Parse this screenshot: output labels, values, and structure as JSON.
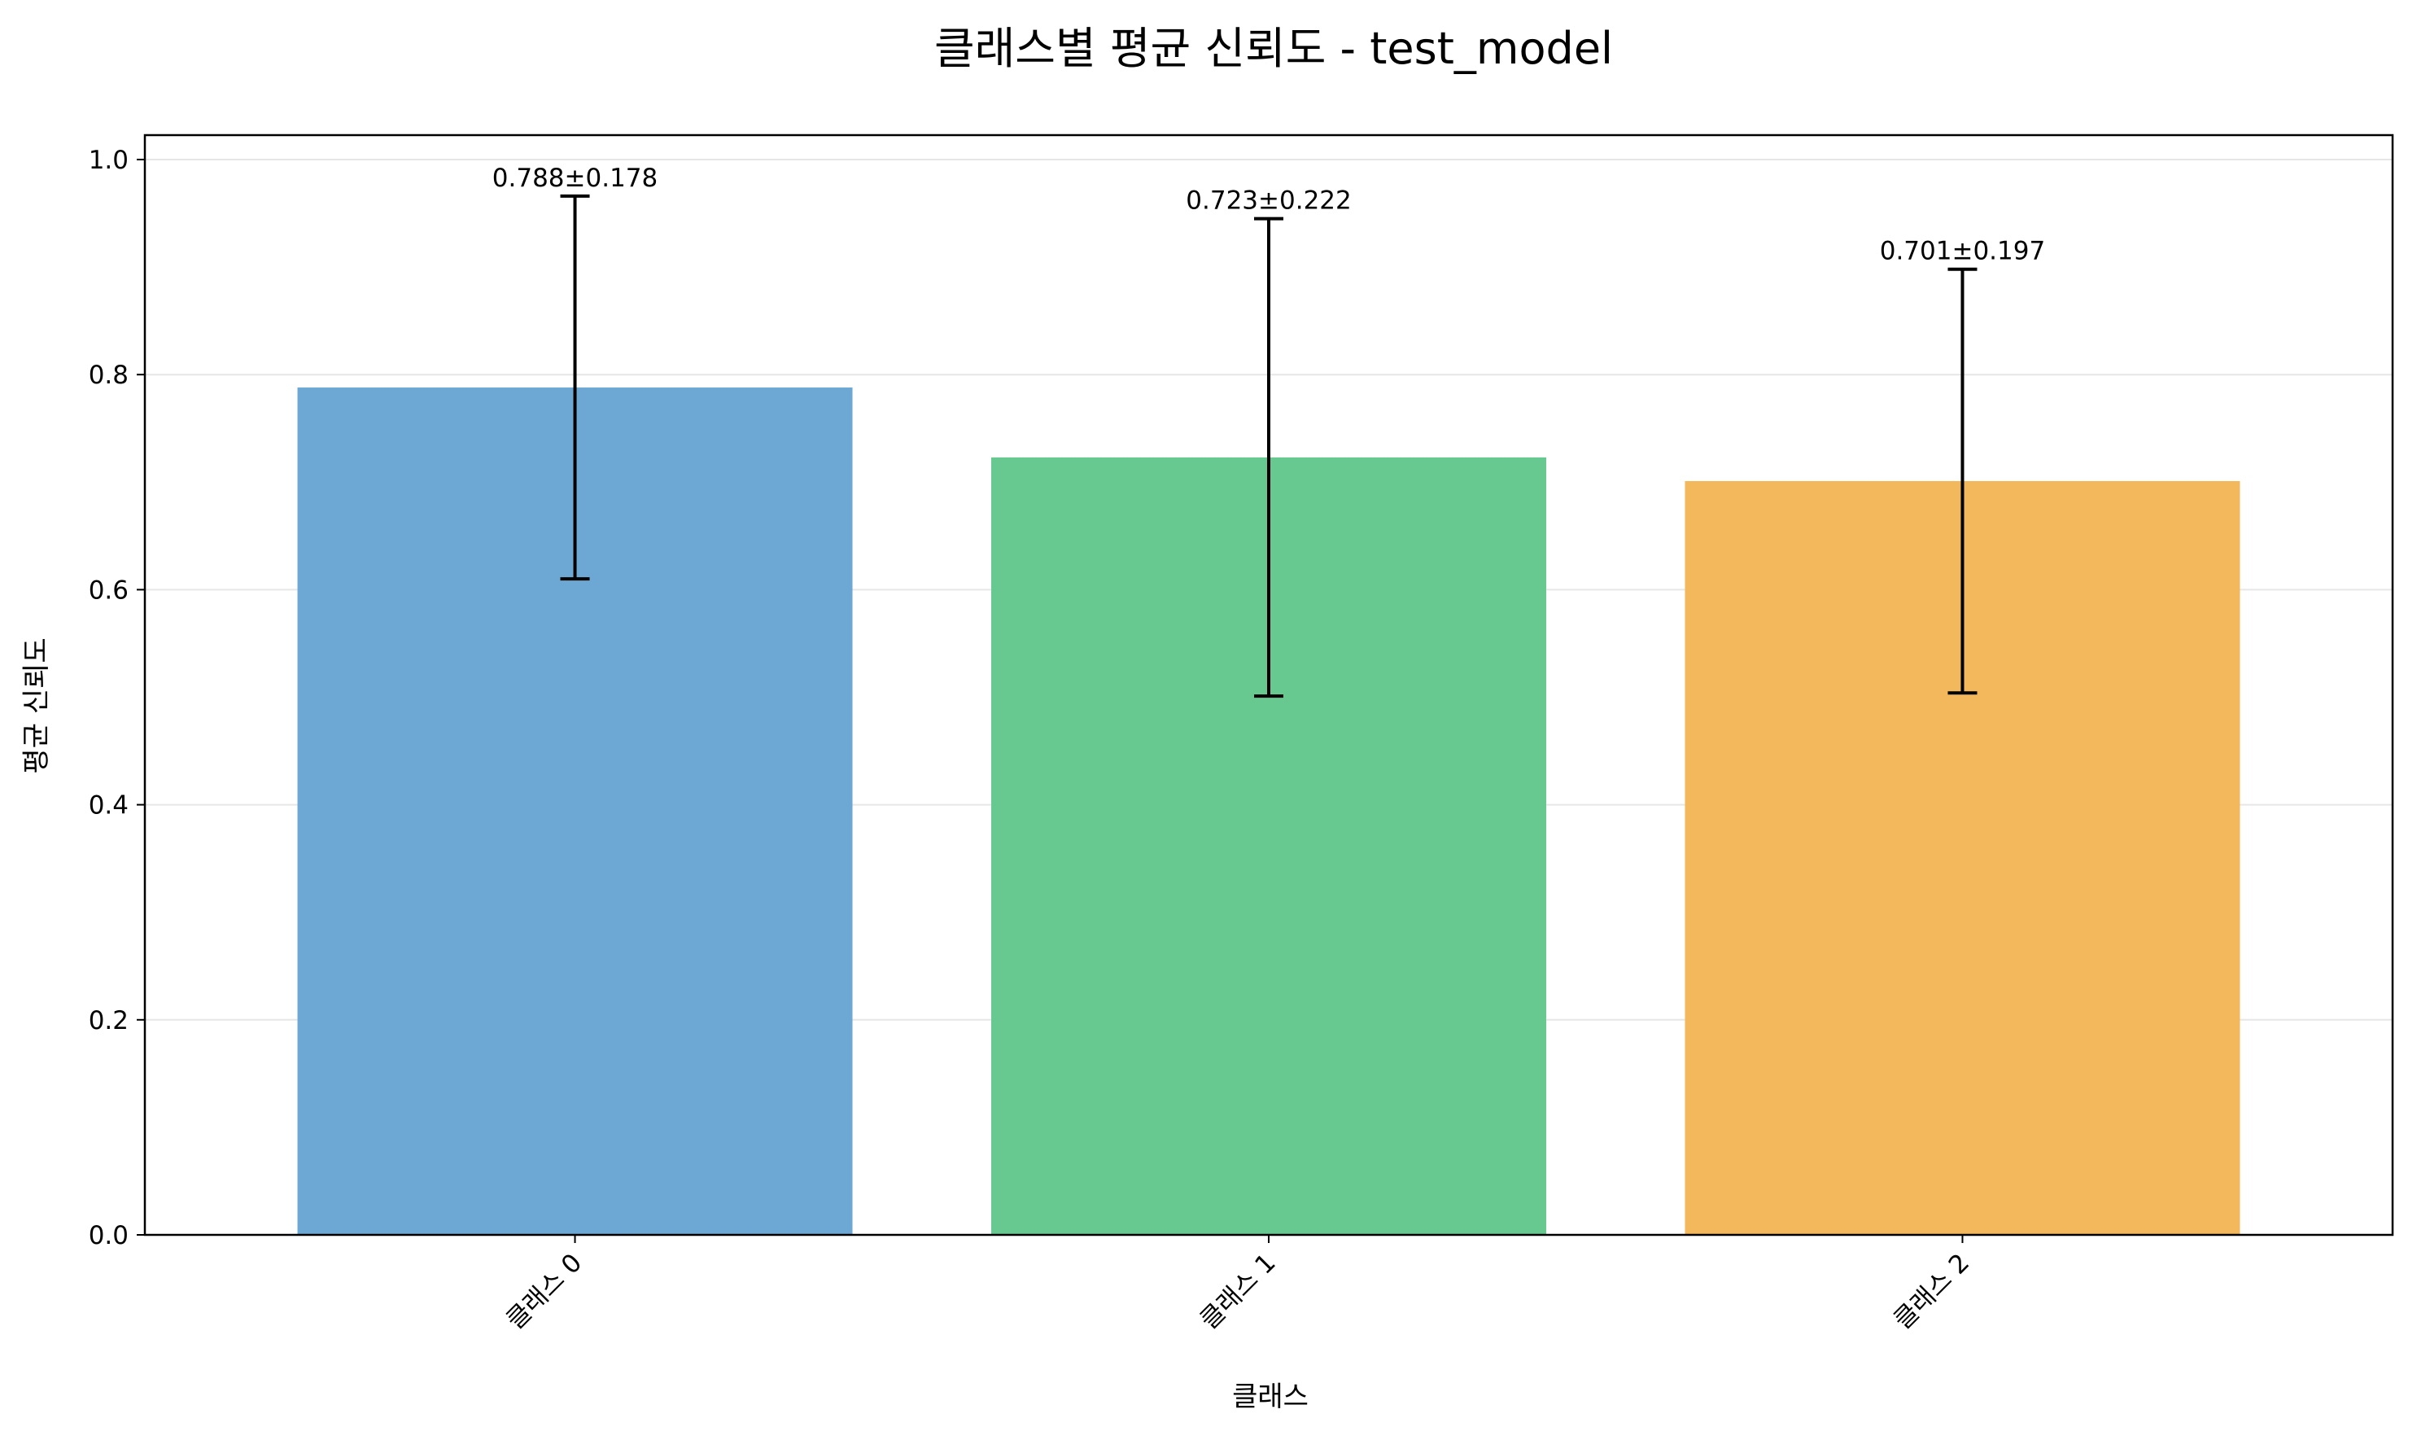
{
  "chart_data": {
    "type": "bar",
    "title": "클래스별 평균 신뢰도 - test_model",
    "xlabel": "클래스",
    "ylabel": "평균 신뢰도",
    "categories": [
      "클래스 0",
      "클래스 1",
      "클래스 2"
    ],
    "values": [
      0.788,
      0.723,
      0.701
    ],
    "errors": [
      0.178,
      0.222,
      0.197
    ],
    "data_labels": [
      "0.788±0.178",
      "0.723±0.222",
      "0.701±0.197"
    ],
    "colors": [
      "#6ca8d3",
      "#68c990",
      "#f3b85c"
    ],
    "error_color": "#000000",
    "grid_color": "#e6e6e6",
    "ylim": [
      0,
      1.0
    ],
    "yticks": [
      0.0,
      0.2,
      0.4,
      0.6,
      0.8,
      1.0
    ],
    "ytick_labels": [
      "0.0",
      "0.2",
      "0.4",
      "0.6",
      "0.8",
      "1.0"
    ],
    "grid": true,
    "grid_axis": "y"
  }
}
